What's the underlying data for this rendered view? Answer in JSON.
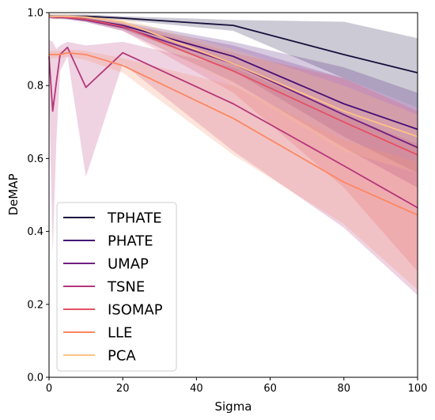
{
  "chart_data": {
    "type": "line",
    "title": "",
    "xlabel": "Sigma",
    "ylabel": "DeMAP",
    "xlim": [
      0,
      100
    ],
    "ylim": [
      0.0,
      1.0
    ],
    "xticks": [
      "0",
      "20",
      "40",
      "60",
      "80",
      "100"
    ],
    "yticks": [
      "0.0",
      "0.2",
      "0.4",
      "0.6",
      "0.8",
      "1.0"
    ],
    "legend_position": "lower-left",
    "x": [
      0,
      1,
      2,
      3,
      5,
      10,
      20,
      50,
      80,
      100
    ],
    "series": [
      {
        "name": "TPHATE",
        "color": "#180f3d",
        "values": [
          0.99,
          0.99,
          0.99,
          0.99,
          0.99,
          0.99,
          0.985,
          0.965,
          0.885,
          0.835
        ],
        "lower": [
          0.985,
          0.985,
          0.985,
          0.985,
          0.985,
          0.985,
          0.98,
          0.95,
          0.82,
          0.74
        ],
        "upper": [
          0.995,
          0.995,
          0.995,
          0.995,
          0.995,
          0.995,
          0.99,
          0.98,
          0.975,
          0.93
        ]
      },
      {
        "name": "PHATE",
        "color": "#440f76",
        "values": [
          0.99,
          0.988,
          0.988,
          0.988,
          0.987,
          0.982,
          0.965,
          0.88,
          0.75,
          0.68
        ],
        "lower": [
          0.985,
          0.984,
          0.984,
          0.984,
          0.983,
          0.976,
          0.955,
          0.84,
          0.66,
          0.56
        ],
        "upper": [
          0.995,
          0.992,
          0.992,
          0.992,
          0.991,
          0.988,
          0.975,
          0.92,
          0.85,
          0.78
        ]
      },
      {
        "name": "UMAP",
        "color": "#721f81",
        "values": [
          0.99,
          0.988,
          0.987,
          0.987,
          0.986,
          0.98,
          0.96,
          0.86,
          0.72,
          0.63
        ],
        "lower": [
          0.985,
          0.983,
          0.982,
          0.982,
          0.981,
          0.974,
          0.95,
          0.81,
          0.63,
          0.52
        ],
        "upper": [
          0.995,
          0.993,
          0.992,
          0.992,
          0.991,
          0.986,
          0.97,
          0.91,
          0.82,
          0.74
        ]
      },
      {
        "name": "TSNE",
        "color": "#b5367a",
        "values": [
          0.88,
          0.73,
          0.81,
          0.885,
          0.905,
          0.795,
          0.89,
          0.75,
          0.58,
          0.465
        ],
        "lower": [
          0.78,
          0.34,
          0.65,
          0.84,
          0.88,
          0.55,
          0.86,
          0.62,
          0.41,
          0.225
        ],
        "upper": [
          0.925,
          0.92,
          0.9,
          0.91,
          0.92,
          0.91,
          0.92,
          0.85,
          0.72,
          0.64
        ]
      },
      {
        "name": "ISOMAP",
        "color": "#e55064",
        "values": [
          0.99,
          0.988,
          0.988,
          0.988,
          0.987,
          0.982,
          0.962,
          0.84,
          0.7,
          0.61
        ],
        "lower": [
          0.985,
          0.983,
          0.983,
          0.983,
          0.982,
          0.975,
          0.95,
          0.78,
          0.52,
          0.29
        ],
        "upper": [
          0.995,
          0.993,
          0.993,
          0.993,
          0.992,
          0.988,
          0.975,
          0.89,
          0.82,
          0.73
        ]
      },
      {
        "name": "LLE",
        "color": "#fb8761",
        "values": [
          0.885,
          0.885,
          0.885,
          0.885,
          0.89,
          0.885,
          0.855,
          0.71,
          0.535,
          0.445
        ],
        "lower": [
          0.875,
          0.875,
          0.875,
          0.875,
          0.88,
          0.87,
          0.835,
          0.61,
          0.42,
          0.24
        ],
        "upper": [
          0.895,
          0.895,
          0.895,
          0.895,
          0.9,
          0.895,
          0.875,
          0.8,
          0.65,
          0.59
        ]
      },
      {
        "name": "PCA",
        "color": "#fec287",
        "values": [
          0.99,
          0.99,
          0.99,
          0.99,
          0.99,
          0.988,
          0.975,
          0.86,
          0.73,
          0.66
        ],
        "lower": [
          0.985,
          0.985,
          0.985,
          0.985,
          0.985,
          0.982,
          0.965,
          0.8,
          0.62,
          0.56
        ],
        "upper": [
          0.995,
          0.995,
          0.995,
          0.995,
          0.995,
          0.993,
          0.985,
          0.9,
          0.8,
          0.72
        ]
      }
    ]
  }
}
